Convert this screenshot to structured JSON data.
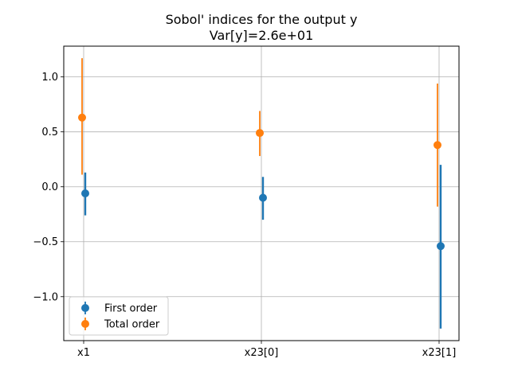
{
  "chart_data": {
    "type": "scatter",
    "title": "Sobol' indices for the output y",
    "subtitle": "Var[y]=2.6e+01",
    "xlabel": "",
    "ylabel": "",
    "categories": [
      "x1",
      "x23[0]",
      "x23[1]"
    ],
    "ylim": [
      -1.4,
      1.28
    ],
    "yticks": [
      1.0,
      0.5,
      0.0,
      -0.5,
      -1.0
    ],
    "ytick_labels": [
      "1.0",
      "0.5",
      "0.0",
      "−0.5",
      "−1.0"
    ],
    "grid": true,
    "legend_position": "lower-left",
    "series": [
      {
        "name": "First order",
        "color": "#1f77b4",
        "values": [
          -0.06,
          -0.1,
          -0.54
        ],
        "lower": [
          -0.26,
          -0.3,
          -1.29
        ],
        "upper": [
          0.13,
          0.09,
          0.2
        ]
      },
      {
        "name": "Total order",
        "color": "#ff7f0e",
        "values": [
          0.63,
          0.49,
          0.38
        ],
        "lower": [
          0.11,
          0.28,
          -0.18
        ],
        "upper": [
          1.17,
          0.69,
          0.94
        ]
      }
    ]
  }
}
